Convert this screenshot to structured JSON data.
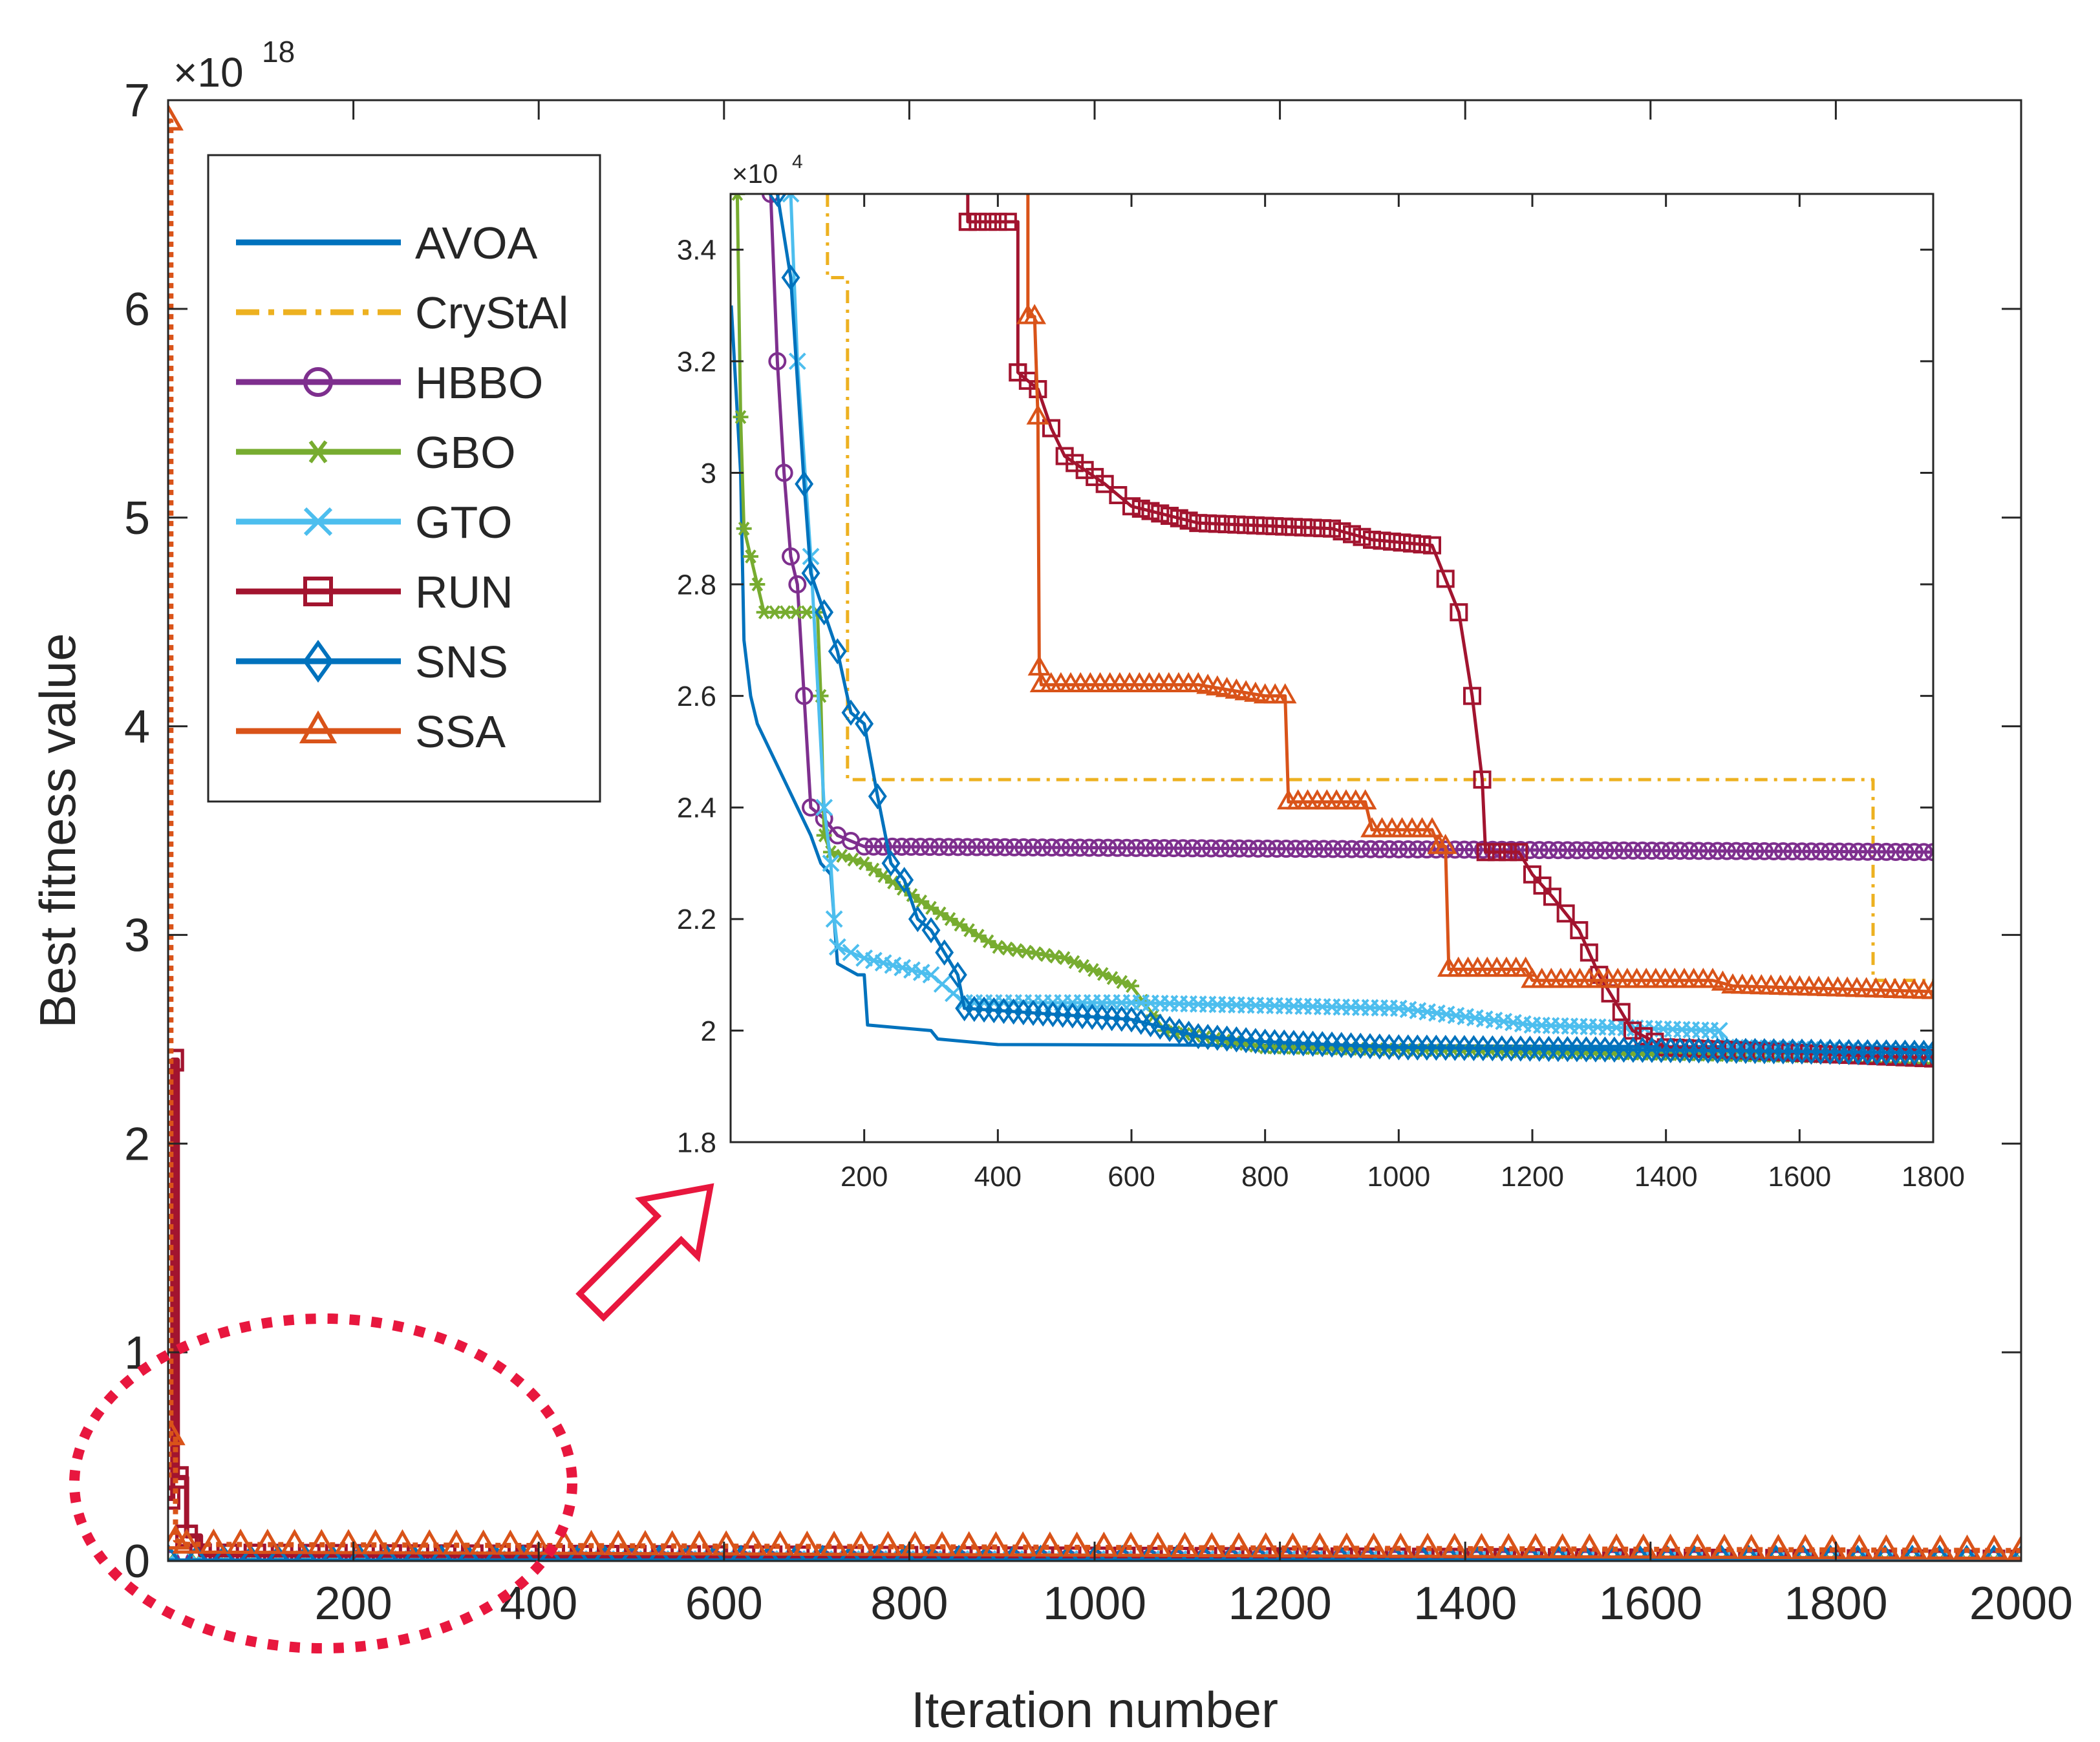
{
  "chart_data": [
    {
      "type": "line",
      "role": "main",
      "xlabel": "Iteration number",
      "ylabel": "Best fitness value",
      "y_exponent_label": "×10",
      "y_exponent": "18",
      "xlim": [
        0,
        2000
      ],
      "ylim": [
        0,
        7
      ],
      "xticks": [
        200,
        400,
        600,
        800,
        1000,
        1200,
        1400,
        1600,
        1800,
        2000
      ],
      "yticks": [
        0,
        1,
        2,
        3,
        4,
        5,
        6,
        7
      ],
      "legend": {
        "position": "top-left",
        "entries": [
          "AVOA",
          "CrySt​Al",
          "HBBO",
          "GBO",
          "GTO",
          "RUN",
          "SNS",
          "SSA"
        ]
      },
      "series": [
        {
          "name": "AVOA",
          "color": "#0072BD",
          "style": "solid",
          "marker": "none",
          "x": [
            1,
            2000
          ],
          "y": [
            0,
            0
          ]
        },
        {
          "name": "CrySt​Al",
          "color": "#EDB120",
          "style": "dashdot",
          "marker": "none",
          "x": [
            1,
            2000
          ],
          "y": [
            0,
            0
          ]
        },
        {
          "name": "HBBO",
          "color": "#7E2F8E",
          "style": "solid",
          "marker": "circle",
          "x": [
            1,
            2000
          ],
          "y": [
            0,
            0
          ]
        },
        {
          "name": "GBO",
          "color": "#77AC30",
          "style": "solid",
          "marker": "asterisk",
          "x": [
            1,
            2000
          ],
          "y": [
            0,
            0
          ]
        },
        {
          "name": "GTO",
          "color": "#4DBEEE",
          "style": "solid",
          "marker": "x",
          "x": [
            1,
            2000
          ],
          "y": [
            0,
            0
          ]
        },
        {
          "name": "RUN",
          "color": "#A2142F",
          "style": "solid",
          "marker": "square",
          "x": [
            1,
            5,
            5,
            10,
            10,
            20,
            20,
            35,
            35,
            2000
          ],
          "y": [
            0.3,
            0.3,
            2.4,
            2.4,
            0.4,
            0.4,
            0.12,
            0.12,
            0.03,
            0
          ]
        },
        {
          "name": "SNS",
          "color": "#0072BD",
          "style": "solid",
          "marker": "diamond",
          "x": [
            1,
            2000
          ],
          "y": [
            0,
            0
          ]
        },
        {
          "name": "SSA",
          "color": "#D95319",
          "style": "dotted",
          "marker": "triangle",
          "x": [
            1,
            1,
            3,
            3,
            8,
            8,
            20,
            2000
          ],
          "y": [
            0.4,
            6.9,
            6.9,
            0.6,
            0.6,
            0.1,
            0.08,
            0.05
          ]
        }
      ]
    },
    {
      "type": "line",
      "role": "inset",
      "y_exponent_label": "×10",
      "y_exponent": "4",
      "xlim": [
        0,
        1800
      ],
      "ylim": [
        1.8,
        3.5
      ],
      "xticks": [
        200,
        400,
        600,
        800,
        1000,
        1200,
        1400,
        1600,
        1800
      ],
      "yticks": [
        1.8,
        2,
        2.2,
        2.4,
        2.6,
        2.8,
        3,
        3.2,
        3.4
      ],
      "xtick_labels": [
        "200",
        "400",
        "600",
        "800",
        "1000",
        "1200",
        "1400",
        "1600",
        "1800"
      ],
      "ytick_labels": [
        "1.8",
        "2",
        "2.2",
        "2.4",
        "2.6",
        "2.8",
        "3",
        "3.2",
        "3.4"
      ],
      "series": [
        {
          "name": "AVOA",
          "color": "#0072BD",
          "style": "solid",
          "marker": "none",
          "x": [
            1,
            15,
            20,
            30,
            40,
            60,
            80,
            100,
            120,
            135,
            150,
            160,
            190,
            200,
            205,
            300,
            310,
            400,
            1800
          ],
          "y": [
            3.3,
            3.0,
            2.7,
            2.6,
            2.55,
            2.5,
            2.45,
            2.4,
            2.35,
            2.3,
            2.28,
            2.12,
            2.1,
            2.1,
            2.01,
            2.0,
            1.985,
            1.975,
            1.97
          ]
        },
        {
          "name": "CrySt​Al",
          "color": "#EDB120",
          "style": "dashdot",
          "marker": "none",
          "x": [
            145,
            145,
            175,
            175,
            1710,
            1710,
            1800
          ],
          "y": [
            3.5,
            3.35,
            3.35,
            2.45,
            2.45,
            2.09,
            2.09
          ]
        },
        {
          "name": "HBBO",
          "color": "#7E2F8E",
          "style": "solid",
          "marker": "circle",
          "x": [
            60,
            70,
            80,
            90,
            100,
            110,
            120,
            140,
            160,
            200,
            1800
          ],
          "y": [
            3.5,
            3.2,
            3.0,
            2.85,
            2.8,
            2.6,
            2.4,
            2.38,
            2.35,
            2.33,
            2.32
          ]
        },
        {
          "name": "GBO",
          "color": "#77AC30",
          "style": "solid",
          "marker": "asterisk",
          "x": [
            10,
            15,
            20,
            30,
            40,
            50,
            130,
            135,
            140,
            150,
            200,
            300,
            400,
            500,
            600,
            650,
            800,
            1800
          ],
          "y": [
            3.5,
            3.1,
            2.9,
            2.85,
            2.8,
            2.75,
            2.75,
            2.6,
            2.35,
            2.32,
            2.3,
            2.22,
            2.15,
            2.13,
            2.08,
            2.0,
            1.97,
            1.95
          ]
        },
        {
          "name": "GTO",
          "color": "#4DBEEE",
          "style": "solid",
          "marker": "x",
          "x": [
            90,
            100,
            120,
            140,
            150,
            155,
            160,
            200,
            300,
            350,
            600,
            1000,
            1200,
            1480,
            1490,
            1800
          ],
          "y": [
            3.5,
            3.2,
            2.85,
            2.4,
            2.3,
            2.2,
            2.15,
            2.13,
            2.1,
            2.05,
            2.05,
            2.04,
            2.01,
            2.0,
            1.97,
            1.96
          ]
        },
        {
          "name": "RUN",
          "color": "#A2142F",
          "style": "solid",
          "marker": "square",
          "x": [
            355,
            355,
            430,
            430,
            460,
            480,
            500,
            560,
            600,
            700,
            900,
            960,
            1050,
            1090,
            1110,
            1125,
            1130,
            1180,
            1200,
            1230,
            1270,
            1300,
            1350,
            1400,
            1800
          ],
          "y": [
            3.5,
            3.45,
            3.45,
            3.18,
            3.15,
            3.08,
            3.03,
            2.98,
            2.94,
            2.91,
            2.9,
            2.88,
            2.87,
            2.75,
            2.6,
            2.45,
            2.32,
            2.32,
            2.28,
            2.24,
            2.18,
            2.1,
            2.0,
            1.97,
            1.95
          ]
        },
        {
          "name": "SNS",
          "color": "#0072BD",
          "style": "solid",
          "marker": "diamond",
          "x": [
            70,
            90,
            110,
            120,
            140,
            160,
            180,
            200,
            220,
            240,
            260,
            280,
            300,
            340,
            350,
            600,
            700,
            800,
            1000,
            1800
          ],
          "y": [
            3.5,
            3.35,
            2.98,
            2.82,
            2.75,
            2.68,
            2.57,
            2.55,
            2.42,
            2.3,
            2.27,
            2.2,
            2.18,
            2.1,
            2.04,
            2.02,
            1.99,
            1.98,
            1.97,
            1.96
          ]
        },
        {
          "name": "SSA",
          "color": "#D95319",
          "style": "solid",
          "marker": "triangle",
          "x": [
            445,
            445,
            455,
            460,
            462,
            465,
            700,
            800,
            830,
            835,
            950,
            960,
            1050,
            1060,
            1070,
            1075,
            1190,
            1200,
            1470,
            1500,
            1800
          ],
          "y": [
            3.5,
            3.28,
            3.28,
            3.1,
            2.65,
            2.62,
            2.62,
            2.6,
            2.6,
            2.41,
            2.41,
            2.36,
            2.36,
            2.33,
            2.33,
            2.11,
            2.11,
            2.09,
            2.09,
            2.08,
            2.07
          ]
        }
      ]
    }
  ]
}
